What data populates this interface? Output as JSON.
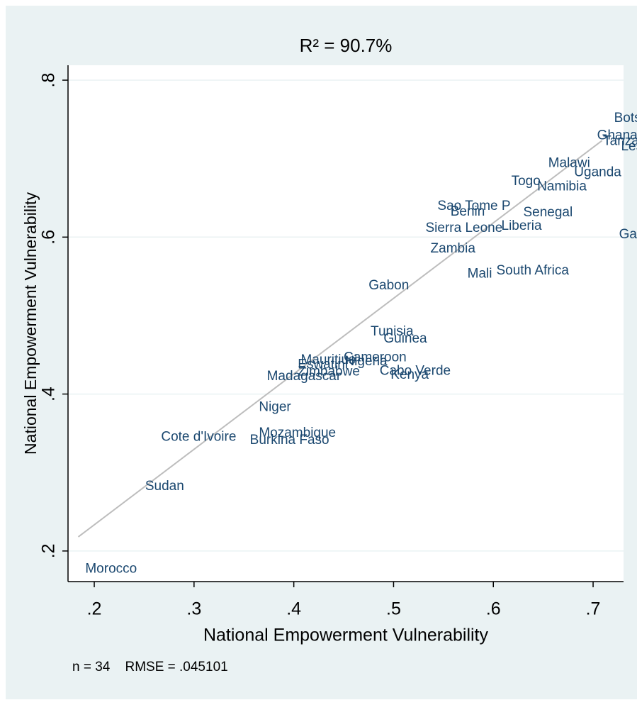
{
  "chart_data": {
    "type": "scatter",
    "title": "R² = 90.7%",
    "x_label": "National Empowerment Vulnerability",
    "y_label": "National Empowerment Vulnerability",
    "note": "n = 34    RMSE = .045101",
    "xlim": [
      0.1737,
      0.7305
    ],
    "ylim": [
      0.161,
      0.819
    ],
    "xticks": [
      {
        "value": 0.2,
        "label": ".2"
      },
      {
        "value": 0.3,
        "label": ".3"
      },
      {
        "value": 0.4,
        "label": ".4"
      },
      {
        "value": 0.5,
        "label": ".5"
      },
      {
        "value": 0.6,
        "label": ".6"
      },
      {
        "value": 0.7,
        "label": ".7"
      }
    ],
    "yticks": [
      {
        "value": 0.2,
        "label": ".2"
      },
      {
        "value": 0.4,
        "label": ".4"
      },
      {
        "value": 0.6,
        "label": ".6"
      },
      {
        "value": 0.8,
        "label": ".8"
      }
    ],
    "grid": true,
    "label_color": "#1a476f",
    "fit_color": "#bdbdbd",
    "labels": [
      "Morocco",
      "Sudan",
      "Cote d'Ivoire",
      "Burkina Faso",
      "Mozambique",
      "Niger",
      "Madagascar",
      "Zimbabwe",
      "Eswatini",
      "Mauritius",
      "Nigeria",
      "Cameroon",
      "Cabo Verde",
      "Kenya",
      "Tunisia",
      "Guinea",
      "Gabon",
      "Zambia",
      "Mali",
      "South Africa",
      "Sierra Leone",
      "Liberia",
      "Sao Tome P",
      "Benin",
      "Senegal",
      "Togo",
      "Namibia",
      "Malawi",
      "Uganda",
      "Ghana",
      "Tanzania",
      "Lesotho",
      "Botswana",
      "Gambia"
    ],
    "x": [
      0.191,
      0.251,
      0.267,
      0.356,
      0.365,
      0.365,
      0.373,
      0.404,
      0.404,
      0.407,
      0.451,
      0.45,
      0.486,
      0.497,
      0.477,
      0.49,
      0.475,
      0.537,
      0.574,
      0.603,
      0.532,
      0.608,
      0.544,
      0.557,
      0.63,
      0.618,
      0.644,
      0.655,
      0.681,
      0.704,
      0.71,
      0.728,
      0.721,
      0.726
    ],
    "y": [
      0.177,
      0.282,
      0.345,
      0.341,
      0.35,
      0.383,
      0.422,
      0.428,
      0.437,
      0.443,
      0.441,
      0.446,
      0.429,
      0.424,
      0.479,
      0.47,
      0.538,
      0.585,
      0.553,
      0.557,
      0.611,
      0.614,
      0.639,
      0.632,
      0.631,
      0.671,
      0.664,
      0.694,
      0.682,
      0.729,
      0.722,
      0.715,
      0.751,
      0.603
    ],
    "fit_line": {
      "x": [
        0.184,
        0.709
      ],
      "y": [
        0.218,
        0.723
      ]
    }
  }
}
